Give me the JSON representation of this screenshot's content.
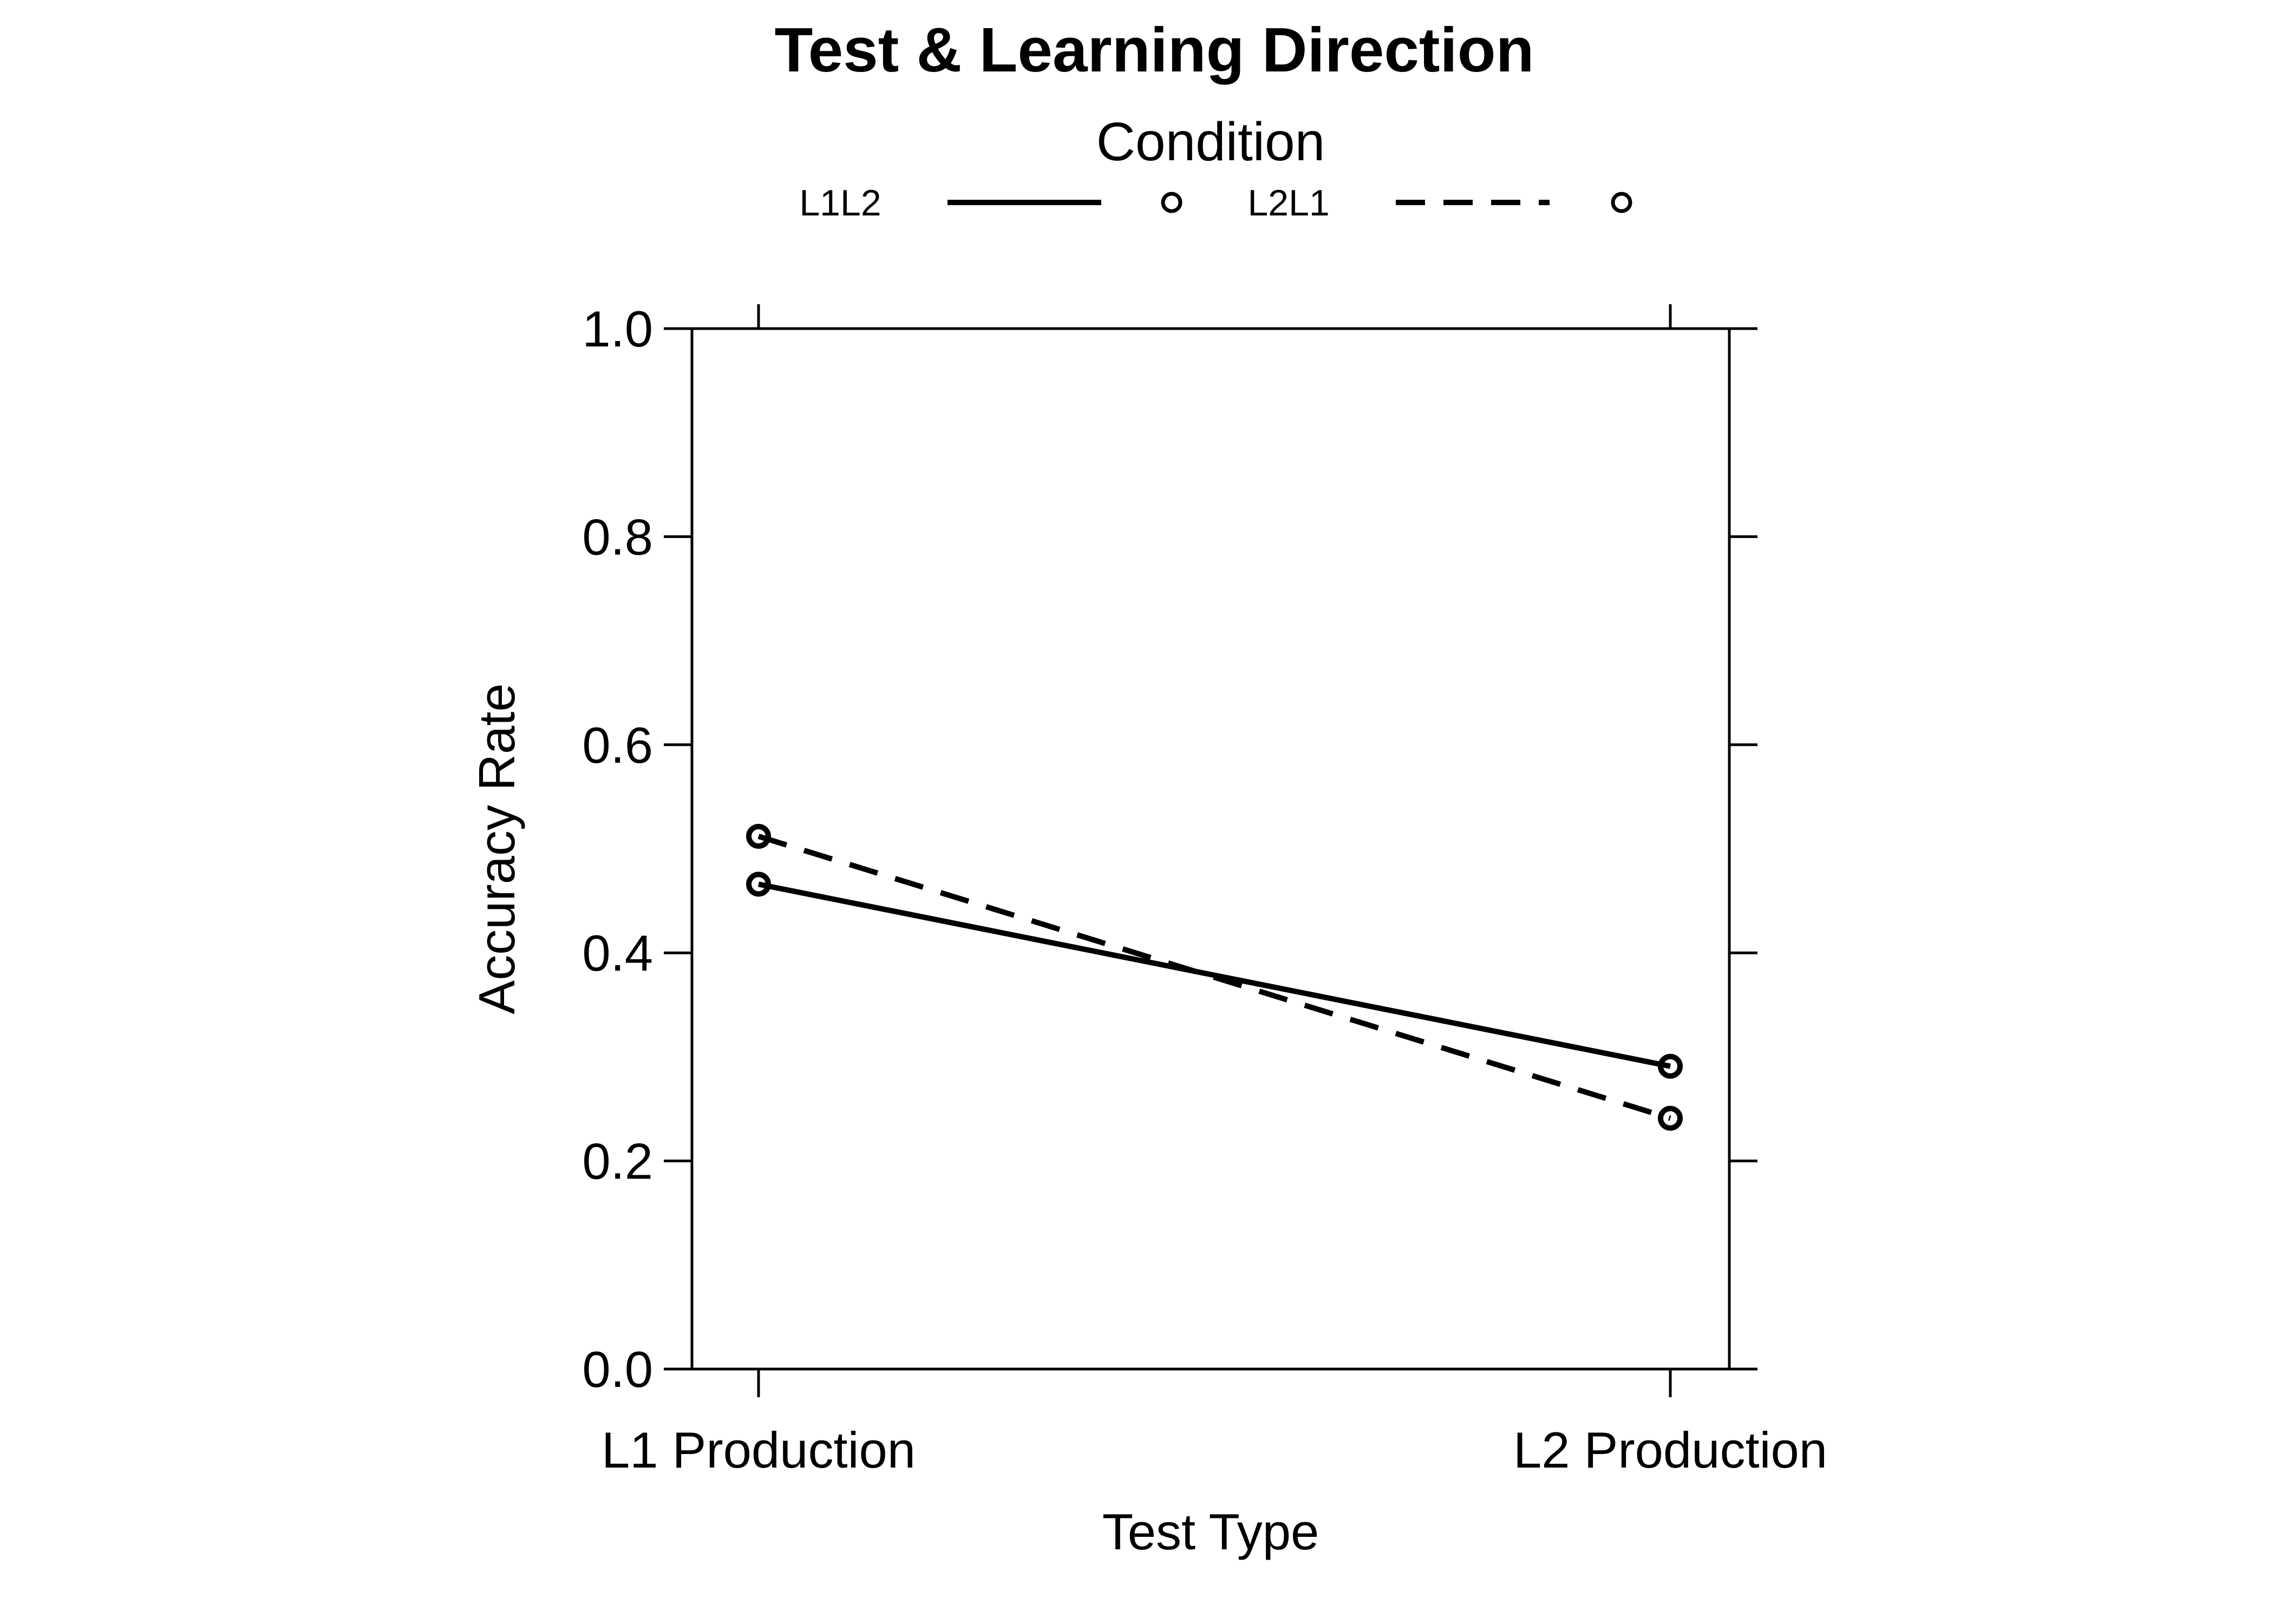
{
  "chart_data": {
    "type": "line",
    "title": "Test & Learning Direction",
    "legend": {
      "title": "Condition",
      "placement": "top"
    },
    "xlabel": "Test Type",
    "ylabel": "Accuracy Rate",
    "categories": [
      "L1 Production",
      "L2 Production"
    ],
    "ylim": [
      0,
      1
    ],
    "yticks": [
      "0.0",
      "0.2",
      "0.4",
      "0.6",
      "0.8",
      "1.0"
    ],
    "grid": false,
    "series": [
      {
        "name": "L1L2",
        "line_style": "solid",
        "marker": "open-circle",
        "values": [
          0.466,
          0.291
        ]
      },
      {
        "name": "L2L1",
        "line_style": "dashed",
        "marker": "open-circle",
        "values": [
          0.512,
          0.241
        ]
      }
    ]
  }
}
